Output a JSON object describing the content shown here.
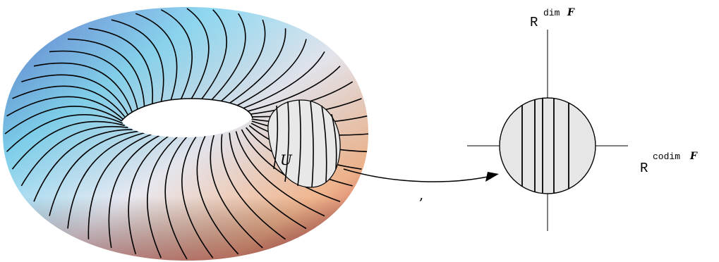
{
  "torus": {
    "region_label": "U",
    "colors": {
      "blue": "#4a66c8",
      "cyan": "#7fd3f0",
      "light": "#e9e9f1",
      "peach": "#f0b58d",
      "red": "#b5303a",
      "violet": "#8a7fc0",
      "region_fill": "#e8e8e8"
    }
  },
  "separator": ",",
  "chart": {
    "vertical_axis": {
      "base": "R",
      "exponent": "dim",
      "symbol": "F"
    },
    "horizontal_axis": {
      "base": "R",
      "exponent": "codim",
      "symbol": "F"
    },
    "disk_fill": "#e6e6e6"
  }
}
